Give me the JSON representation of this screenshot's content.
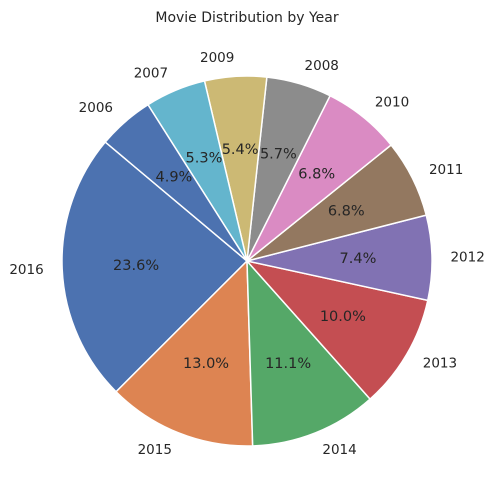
{
  "chart_data": {
    "type": "pie",
    "title": "Movie Distribution by Year",
    "categories": [
      "2016",
      "2015",
      "2014",
      "2013",
      "2012",
      "2011",
      "2010",
      "2008",
      "2009",
      "2007",
      "2006"
    ],
    "values": [
      23.6,
      13.0,
      11.1,
      10.0,
      7.4,
      6.8,
      6.8,
      5.7,
      5.4,
      5.3,
      4.9
    ],
    "percent_labels": [
      "23.6%",
      "13.0%",
      "11.1%",
      "10.0%",
      "7.4%",
      "6.8%",
      "6.8%",
      "5.7%",
      "5.4%",
      "5.3%",
      "4.9%"
    ],
    "colors": [
      "#4c72b0",
      "#dd8452",
      "#55a868",
      "#c44e52",
      "#8172b3",
      "#937860",
      "#da8bc3",
      "#8c8c8c",
      "#ccb974",
      "#64b5cd",
      "#4c72b0"
    ],
    "start_angle_deg": 140,
    "direction": "counterclockwise",
    "legend": "none"
  }
}
